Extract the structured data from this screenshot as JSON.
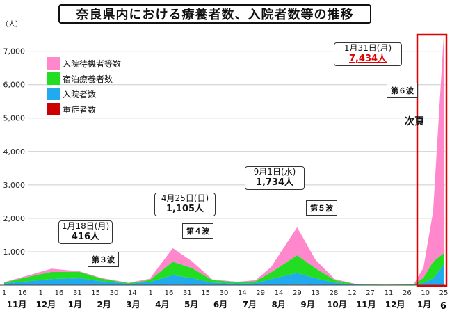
{
  "title": "奈良県内における療養者数、入院者数等の推移",
  "page_number": "6",
  "chart_data": {
    "type": "area",
    "stacked": true,
    "y_unit": "（人）",
    "ylim": [
      0,
      7700
    ],
    "y_ticks": [
      "1,000",
      "2,000",
      "3,000",
      "4,000",
      "5,000",
      "6,000",
      "7,000"
    ],
    "y_tick_values": [
      1000,
      2000,
      3000,
      4000,
      5000,
      6000,
      7000
    ],
    "x_day_ticks": [
      "1",
      "16",
      "1",
      "16",
      "31",
      "15",
      "30",
      "14",
      "1",
      "16",
      "31",
      "15",
      "30",
      "14",
      "29",
      "14",
      "29",
      "13",
      "28",
      "12",
      "27",
      "11",
      "26",
      "10",
      "25"
    ],
    "x_month_ticks": [
      "11月",
      "12月",
      "1月",
      "2月",
      "3月",
      "4月",
      "5月",
      "6月",
      "7月",
      "8月",
      "9月",
      "10月",
      "11月",
      "12月",
      "1月"
    ],
    "legend": [
      {
        "name": "入院待機者等数",
        "color": "#ff88cc"
      },
      {
        "name": "宿泊療養者数",
        "color": "#22dd22"
      },
      {
        "name": "入院者数",
        "color": "#22aaee"
      },
      {
        "name": "重症者数",
        "color": "#cc0000"
      }
    ],
    "series_order": [
      "重症者数",
      "入院者数",
      "宿泊療養者数",
      "入院待機者等数"
    ],
    "x_dates": [
      "2020-11-01",
      "2020-12-01",
      "2020-12-20",
      "2021-01-18",
      "2021-02-10",
      "2021-03-10",
      "2021-04-01",
      "2021-04-25",
      "2021-05-15",
      "2021-06-05",
      "2021-07-01",
      "2021-07-20",
      "2021-08-05",
      "2021-09-01",
      "2021-09-20",
      "2021-10-10",
      "2021-11-01",
      "2021-12-01",
      "2021-12-31",
      "2022-01-10",
      "2022-01-20",
      "2022-01-31"
    ],
    "series": [
      {
        "name": "重症者数",
        "values": [
          2,
          4,
          6,
          8,
          6,
          3,
          4,
          12,
          10,
          3,
          2,
          2,
          5,
          15,
          8,
          2,
          1,
          1,
          1,
          1,
          2,
          5
        ]
      },
      {
        "name": "入院者数",
        "values": [
          50,
          130,
          180,
          200,
          110,
          40,
          90,
          290,
          200,
          70,
          50,
          60,
          180,
          350,
          200,
          70,
          20,
          10,
          10,
          70,
          200,
          600
        ]
      },
      {
        "name": "宿泊療養者数",
        "values": [
          30,
          150,
          210,
          190,
          80,
          20,
          60,
          400,
          300,
          80,
          40,
          60,
          200,
          530,
          300,
          80,
          10,
          5,
          10,
          150,
          500,
          350
        ]
      },
      {
        "name": "入院待機者等数",
        "values": [
          10,
          50,
          100,
          18,
          20,
          10,
          40,
          403,
          200,
          20,
          10,
          30,
          160,
          839,
          250,
          30,
          5,
          0,
          10,
          300,
          1500,
          6479
        ]
      }
    ],
    "annotations": [
      {
        "date": "1月18日(月)",
        "value": "416人",
        "label": "第３波"
      },
      {
        "date": "4月25日(日)",
        "value": "1,105人",
        "label": "第４波"
      },
      {
        "date": "9月1日(水)",
        "value": "1,734人",
        "label": "第５波"
      },
      {
        "date": "1月31日(月)",
        "value": "7,434人",
        "label": "第６波"
      }
    ],
    "side_note": "次頁"
  }
}
